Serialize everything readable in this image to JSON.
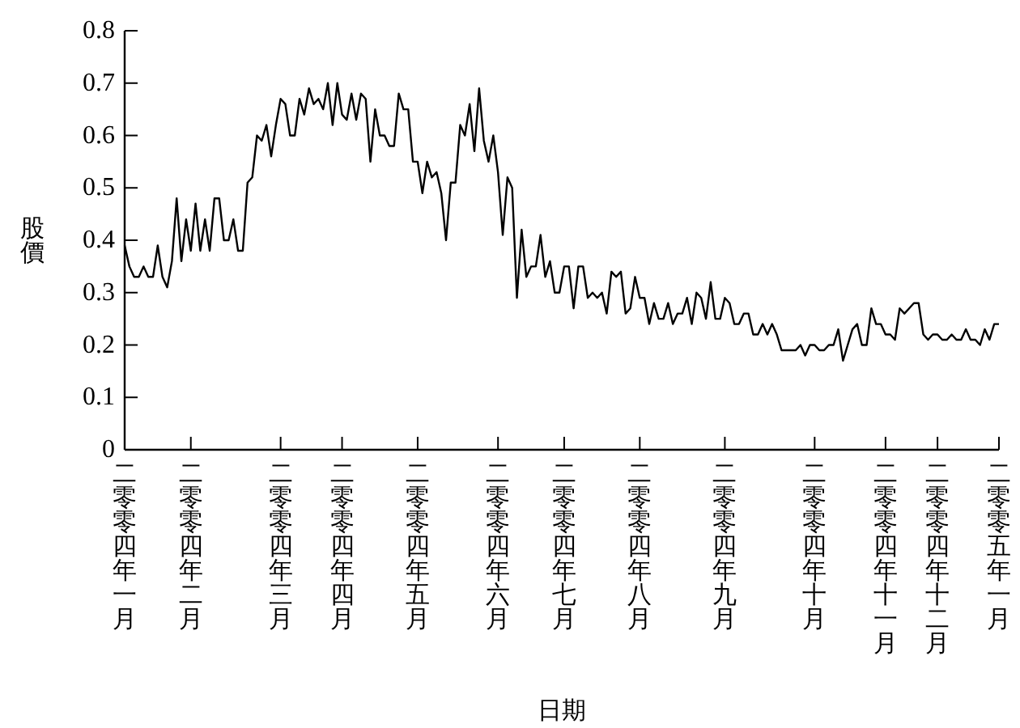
{
  "chart_data": {
    "type": "line",
    "xlabel": "日期",
    "ylabel": "股價",
    "ylim": [
      0,
      0.8
    ],
    "categories": [
      "二零零四年一月",
      null,
      null,
      null,
      null,
      null,
      null,
      null,
      null,
      null,
      null,
      null,
      null,
      null,
      "二零零四年二月",
      null,
      null,
      null,
      null,
      null,
      null,
      null,
      null,
      null,
      null,
      null,
      null,
      null,
      null,
      null,
      null,
      null,
      null,
      "二零零四年三月",
      null,
      null,
      null,
      null,
      null,
      null,
      null,
      null,
      null,
      null,
      null,
      null,
      "二零零四年四月",
      null,
      null,
      null,
      null,
      null,
      null,
      null,
      null,
      null,
      null,
      null,
      null,
      null,
      null,
      null,
      "二零零四年五月",
      null,
      null,
      null,
      null,
      null,
      null,
      null,
      null,
      null,
      null,
      null,
      null,
      null,
      null,
      null,
      null,
      "二零零四年六月",
      null,
      null,
      null,
      null,
      null,
      null,
      null,
      null,
      null,
      null,
      null,
      null,
      null,
      "二零零四年七月",
      null,
      null,
      null,
      null,
      null,
      null,
      null,
      null,
      null,
      null,
      null,
      null,
      null,
      null,
      null,
      "二零零四年八月",
      null,
      null,
      null,
      null,
      null,
      null,
      null,
      null,
      null,
      null,
      null,
      null,
      null,
      null,
      null,
      null,
      null,
      "二零零四年九月",
      null,
      null,
      null,
      null,
      null,
      null,
      null,
      null,
      null,
      null,
      null,
      null,
      null,
      null,
      null,
      null,
      null,
      null,
      "二零零四年十月",
      null,
      null,
      null,
      null,
      null,
      null,
      null,
      null,
      null,
      null,
      null,
      null,
      null,
      null,
      "二零零四年十一月",
      null,
      null,
      null,
      null,
      null,
      null,
      null,
      null,
      null,
      null,
      "二零零四年十二月",
      null,
      null,
      null,
      null,
      null,
      null,
      null,
      null,
      null,
      null,
      null,
      null,
      "二零零五年一月"
    ],
    "yticks": [
      0,
      0.1,
      0.2,
      0.3,
      0.4,
      0.5,
      0.6,
      0.7,
      0.8
    ],
    "grid": false,
    "marker": "none",
    "line_style": "solid",
    "series": [
      {
        "color": "#000000",
        "values": [
          0.39,
          0.35,
          0.33,
          0.33,
          0.35,
          0.33,
          0.33,
          0.39,
          0.33,
          0.31,
          0.36,
          0.48,
          0.36,
          0.44,
          0.38,
          0.47,
          0.38,
          0.44,
          0.38,
          0.48,
          0.48,
          0.4,
          0.4,
          0.44,
          0.38,
          0.38,
          0.51,
          0.52,
          0.6,
          0.59,
          0.62,
          0.56,
          0.62,
          0.67,
          0.66,
          0.6,
          0.6,
          0.67,
          0.64,
          0.69,
          0.66,
          0.67,
          0.65,
          0.7,
          0.62,
          0.7,
          0.64,
          0.63,
          0.68,
          0.63,
          0.68,
          0.67,
          0.55,
          0.65,
          0.6,
          0.6,
          0.58,
          0.58,
          0.68,
          0.65,
          0.65,
          0.55,
          0.55,
          0.49,
          0.55,
          0.52,
          0.53,
          0.49,
          0.4,
          0.51,
          0.51,
          0.62,
          0.6,
          0.66,
          0.57,
          0.69,
          0.59,
          0.55,
          0.6,
          0.53,
          0.41,
          0.52,
          0.5,
          0.29,
          0.42,
          0.33,
          0.35,
          0.35,
          0.41,
          0.33,
          0.36,
          0.3,
          0.3,
          0.35,
          0.35,
          0.27,
          0.35,
          0.35,
          0.29,
          0.3,
          0.29,
          0.3,
          0.26,
          0.34,
          0.33,
          0.34,
          0.26,
          0.27,
          0.33,
          0.29,
          0.29,
          0.24,
          0.28,
          0.25,
          0.25,
          0.28,
          0.24,
          0.26,
          0.26,
          0.29,
          0.24,
          0.3,
          0.29,
          0.25,
          0.32,
          0.25,
          0.25,
          0.29,
          0.28,
          0.24,
          0.24,
          0.26,
          0.26,
          0.22,
          0.22,
          0.24,
          0.22,
          0.24,
          0.22,
          0.19,
          0.19,
          0.19,
          0.19,
          0.2,
          0.18,
          0.2,
          0.2,
          0.19,
          0.19,
          0.2,
          0.2,
          0.23,
          0.17,
          0.2,
          0.23,
          0.24,
          0.2,
          0.2,
          0.27,
          0.24,
          0.24,
          0.22,
          0.22,
          0.21,
          0.27,
          0.26,
          0.27,
          0.28,
          0.28,
          0.22,
          0.21,
          0.22,
          0.22,
          0.21,
          0.21,
          0.22,
          0.21,
          0.21,
          0.23,
          0.21,
          0.21,
          0.2,
          0.23,
          0.21,
          0.24,
          0.24
        ]
      }
    ]
  }
}
